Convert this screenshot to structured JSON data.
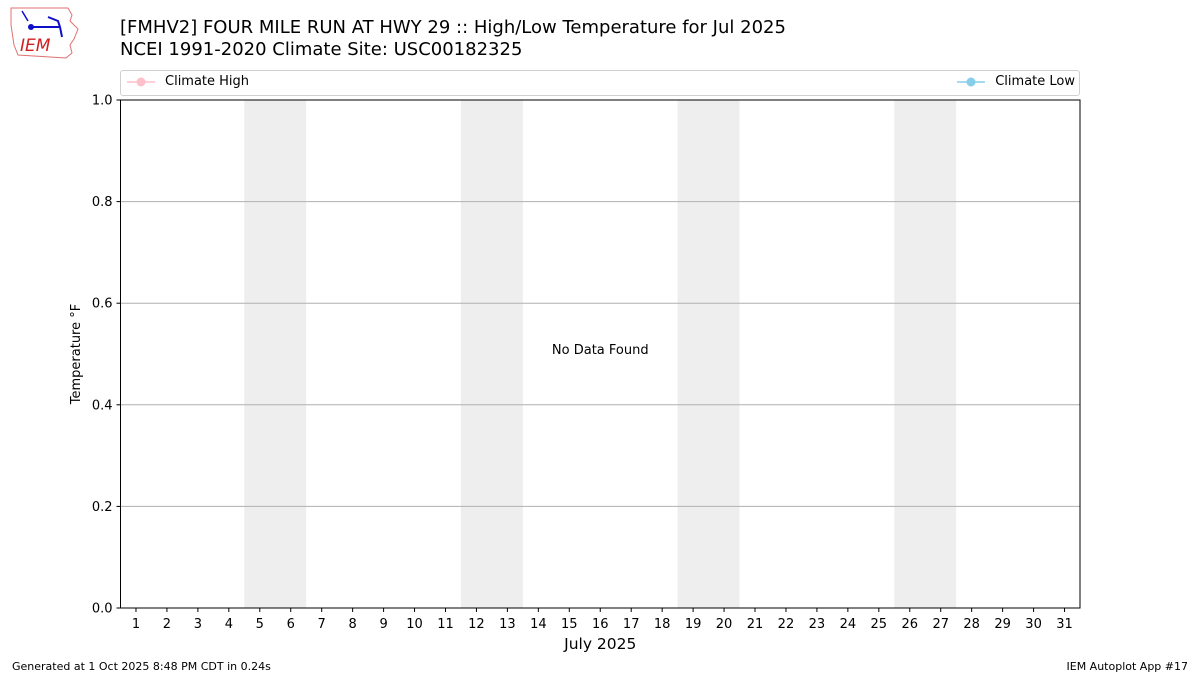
{
  "header": {
    "title_line1": "[FMHV2] FOUR MILE RUN AT HWY 29 :: High/Low Temperature for Jul 2025",
    "title_line2": "NCEI 1991-2020 Climate Site: USC00182325",
    "logo_text": "IEM"
  },
  "legend": {
    "items": [
      {
        "label": "Climate High",
        "color": "#ffc0cb"
      },
      {
        "label": "Climate Low",
        "color": "#87ceeb"
      }
    ]
  },
  "chart_data": {
    "type": "line",
    "xlabel": "July 2025",
    "ylabel": "Temperature °F",
    "xlim": [
      0.5,
      31.5
    ],
    "ylim": [
      0.0,
      1.0
    ],
    "x_ticks": [
      1,
      2,
      3,
      4,
      5,
      6,
      7,
      8,
      9,
      10,
      11,
      12,
      13,
      14,
      15,
      16,
      17,
      18,
      19,
      20,
      21,
      22,
      23,
      24,
      25,
      26,
      27,
      28,
      29,
      30,
      31
    ],
    "y_ticks": [
      "0.0",
      "0.2",
      "0.4",
      "0.6",
      "0.8",
      "1.0"
    ],
    "grid": "horizontal",
    "weekend_shading": [
      [
        4.5,
        6.5
      ],
      [
        11.5,
        13.5
      ],
      [
        18.5,
        20.5
      ],
      [
        25.5,
        27.5
      ]
    ],
    "shading_color": "#eeeeee",
    "series": [
      {
        "name": "Climate High",
        "values": []
      },
      {
        "name": "Climate Low",
        "values": []
      }
    ],
    "annotation": "No Data Found",
    "legend_placement": "top"
  },
  "footer": {
    "left": "Generated at 1 Oct 2025 8:48 PM CDT in 0.24s",
    "right": "IEM Autoplot App #17"
  }
}
